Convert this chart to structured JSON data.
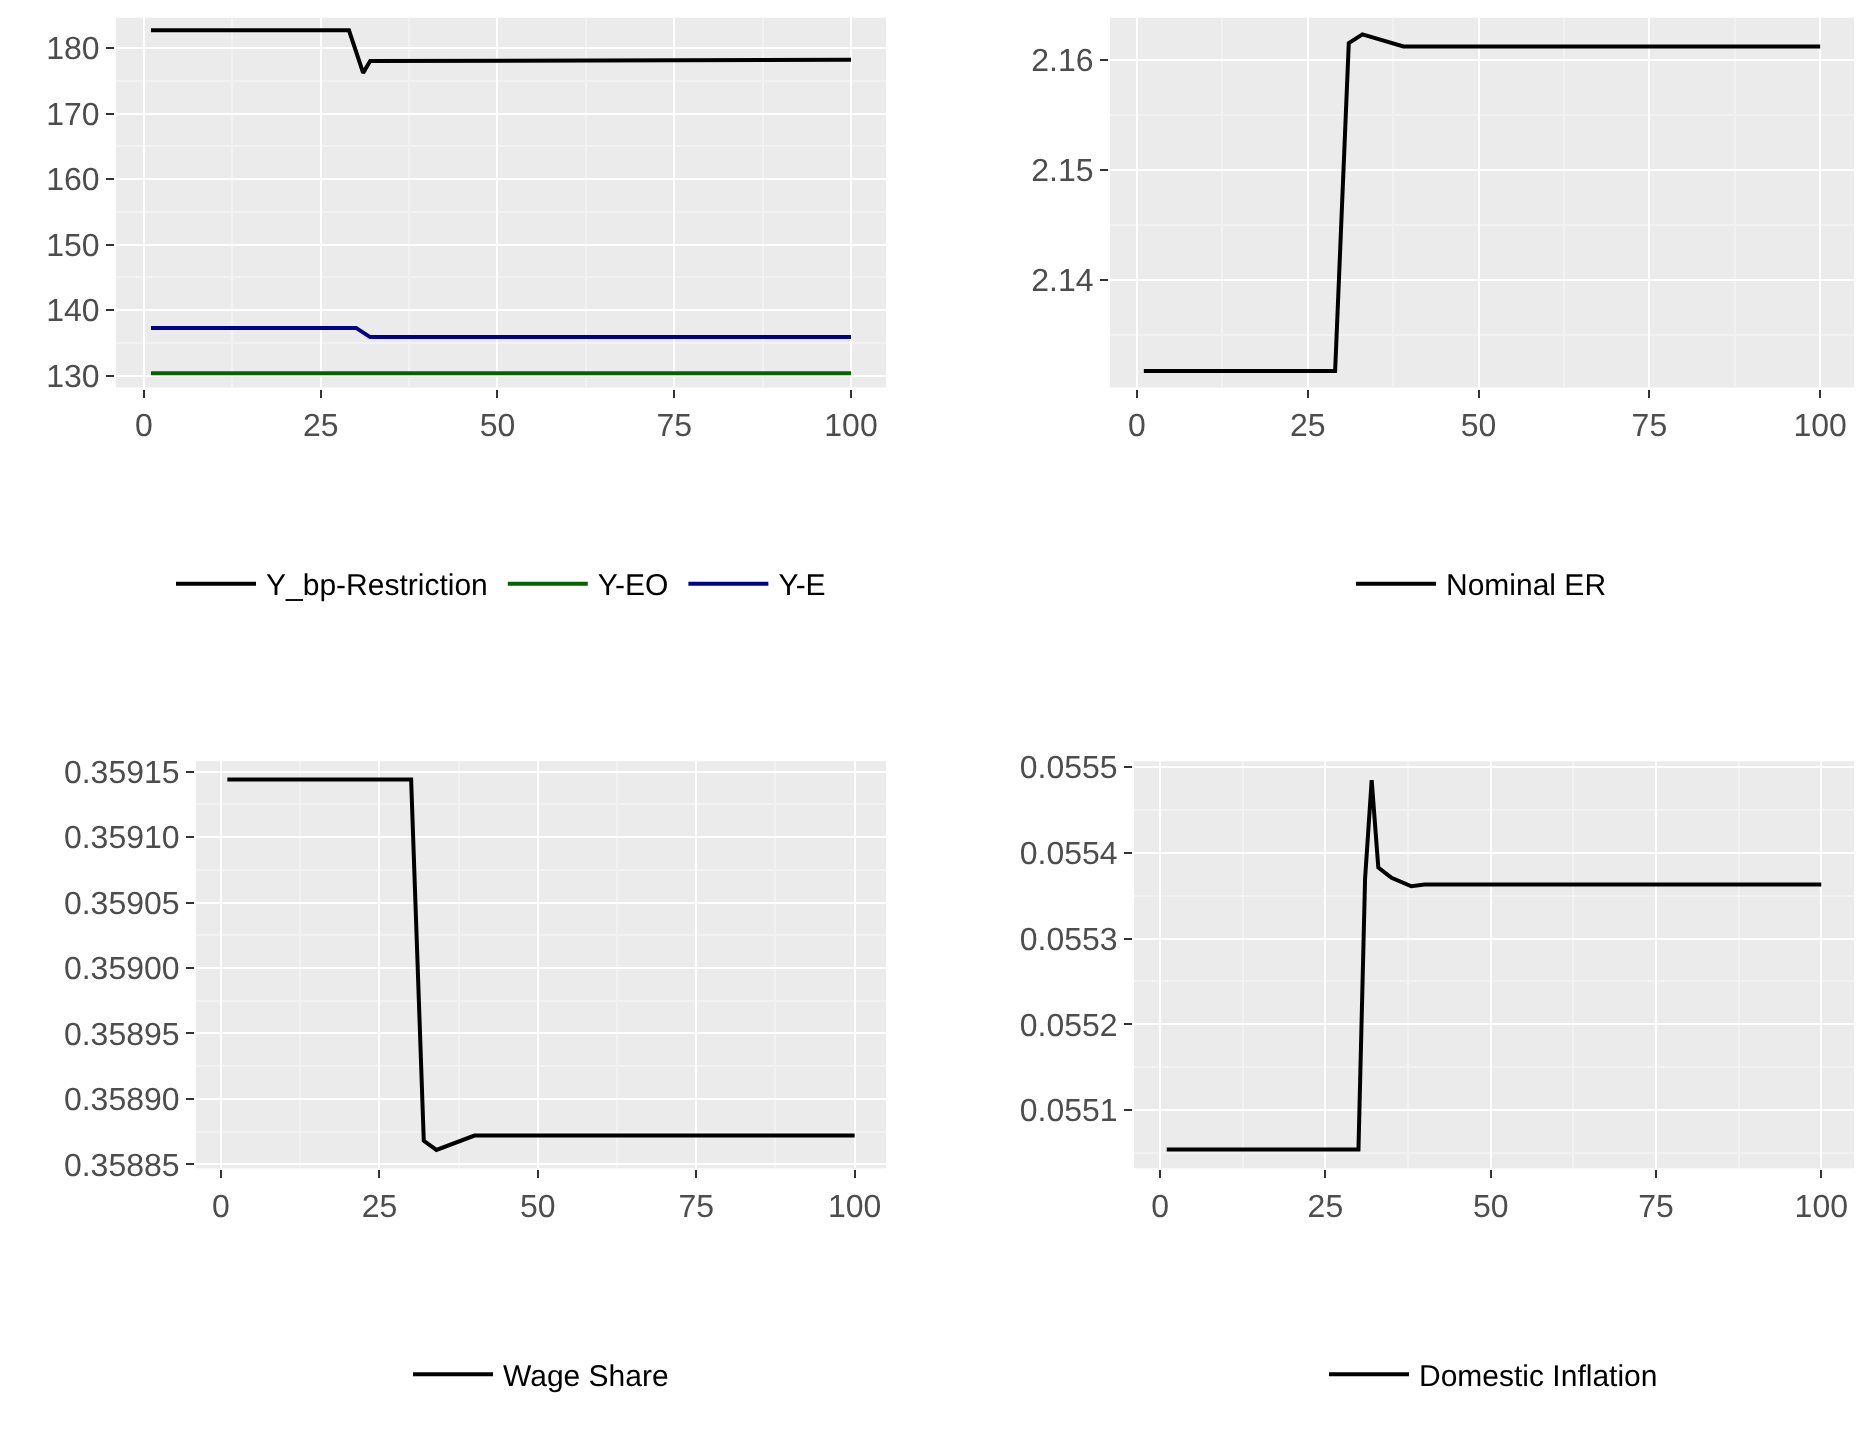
{
  "chart_data": [
    {
      "type": "line",
      "xlim": [
        -3.95,
        104.95
      ],
      "xticks": [
        0,
        25,
        50,
        75,
        100
      ],
      "ylim": [
        128.2,
        184.6
      ],
      "yticks": [
        130,
        140,
        150,
        160,
        170,
        180
      ],
      "grid": true,
      "legend": "bottom",
      "series": [
        {
          "name": "Y_bp-Restriction",
          "color": "#000000",
          "x": [
            1,
            29,
            31,
            32,
            100
          ],
          "values": [
            182.7,
            182.7,
            176.2,
            178.0,
            178.2
          ]
        },
        {
          "name": "Y-EO",
          "color": "#006400",
          "x": [
            1,
            100
          ],
          "values": [
            130.4,
            130.4
          ]
        },
        {
          "name": "Y-E",
          "color": "#00008b",
          "x": [
            1,
            30,
            32,
            100
          ],
          "values": [
            137.3,
            137.3,
            135.9,
            135.9
          ]
        }
      ]
    },
    {
      "type": "line",
      "xlim": [
        -3.95,
        104.95
      ],
      "xticks": [
        0,
        25,
        50,
        75,
        100
      ],
      "ylim": [
        2.1302,
        2.1638
      ],
      "yticks": [
        2.14,
        2.15,
        2.16
      ],
      "grid": true,
      "legend": "bottom",
      "series": [
        {
          "name": "Nominal ER",
          "color": "#000000",
          "x": [
            1,
            29,
            31,
            33,
            39,
            100
          ],
          "values": [
            2.1317,
            2.1317,
            2.1615,
            2.1623,
            2.1612,
            2.1612
          ]
        }
      ]
    },
    {
      "type": "line",
      "xlim": [
        -3.95,
        104.95
      ],
      "xticks": [
        0,
        25,
        50,
        75,
        100
      ],
      "ylim": [
        0.358847,
        0.359158
      ],
      "yticks": [
        {
          "value": 0.35885,
          "label": "0.35885"
        },
        {
          "value": 0.3589,
          "label": "0.35890"
        },
        {
          "value": 0.35895,
          "label": "0.35895"
        },
        {
          "value": 0.359,
          "label": "0.35900"
        },
        {
          "value": 0.35905,
          "label": "0.35905"
        },
        {
          "value": 0.3591,
          "label": "0.35910"
        },
        {
          "value": 0.35915,
          "label": "0.35915"
        }
      ],
      "grid": true,
      "legend": "bottom",
      "series": [
        {
          "name": "Wage Share",
          "color": "#000000",
          "x": [
            1,
            30,
            32,
            34,
            40,
            100
          ],
          "values": [
            0.359144,
            0.359144,
            0.358868,
            0.358861,
            0.358872,
            0.358872
          ]
        }
      ]
    },
    {
      "type": "line",
      "xlim": [
        -3.95,
        104.95
      ],
      "xticks": [
        0,
        25,
        50,
        75,
        100
      ],
      "ylim": [
        0.055032,
        0.055507
      ],
      "yticks": [
        0.0551,
        0.0552,
        0.0553,
        0.0554,
        0.0555
      ],
      "grid": true,
      "legend": "bottom",
      "series": [
        {
          "name": "Domestic Inflation",
          "color": "#000000",
          "x": [
            1,
            30,
            31,
            32,
            33,
            35,
            38,
            40,
            100
          ],
          "values": [
            0.055054,
            0.055054,
            0.05537,
            0.055485,
            0.055383,
            0.055371,
            0.055361,
            0.055363,
            0.055363
          ]
        }
      ]
    }
  ]
}
